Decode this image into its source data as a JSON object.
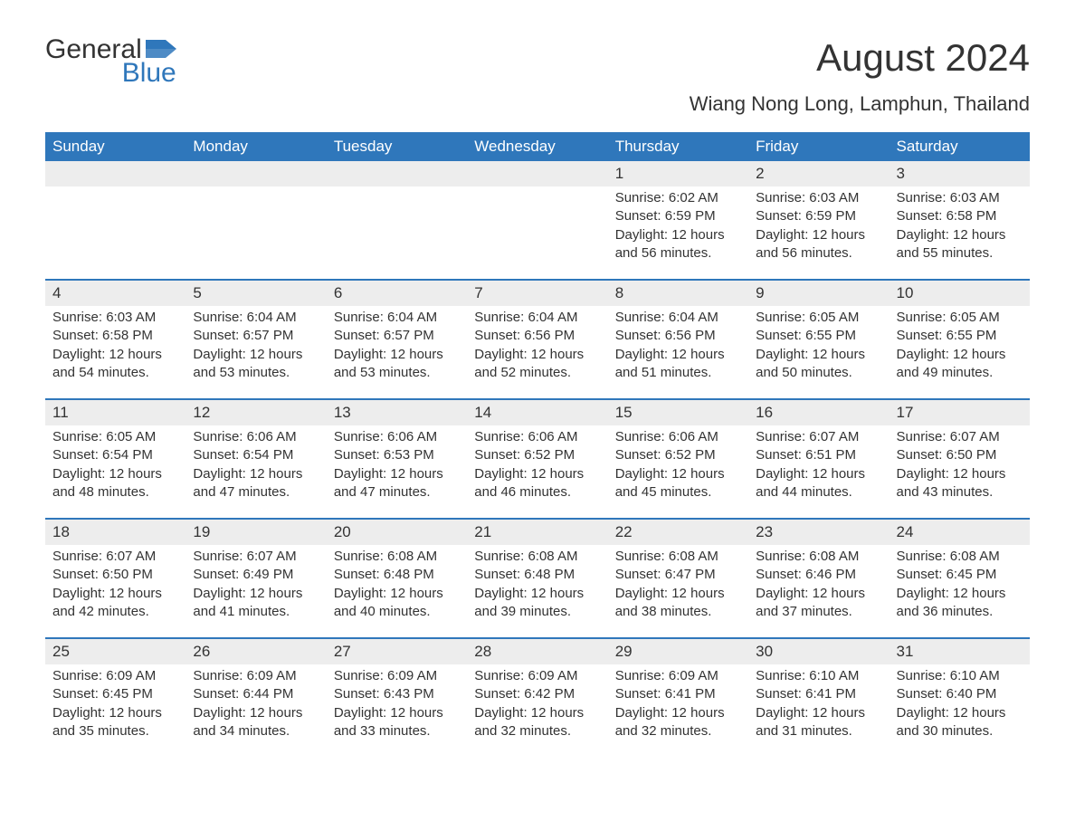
{
  "logo": {
    "text1": "General",
    "text2": "Blue",
    "accent": "#2f77bb"
  },
  "title": "August 2024",
  "subtitle": "Wiang Nong Long, Lamphun, Thailand",
  "colors": {
    "header_bg": "#2f77bb",
    "header_text": "#ffffff",
    "daynum_bg": "#ededed",
    "text": "#333333",
    "rule": "#2f77bb",
    "page_bg": "#ffffff"
  },
  "typography": {
    "title_fontsize": 42,
    "subtitle_fontsize": 22,
    "header_fontsize": 17,
    "daynum_fontsize": 17,
    "body_fontsize": 15
  },
  "weekdays": [
    "Sunday",
    "Monday",
    "Tuesday",
    "Wednesday",
    "Thursday",
    "Friday",
    "Saturday"
  ],
  "weeks": [
    [
      null,
      null,
      null,
      null,
      {
        "n": "1",
        "sunrise": "Sunrise: 6:02 AM",
        "sunset": "Sunset: 6:59 PM",
        "daylight1": "Daylight: 12 hours",
        "daylight2": "and 56 minutes."
      },
      {
        "n": "2",
        "sunrise": "Sunrise: 6:03 AM",
        "sunset": "Sunset: 6:59 PM",
        "daylight1": "Daylight: 12 hours",
        "daylight2": "and 56 minutes."
      },
      {
        "n": "3",
        "sunrise": "Sunrise: 6:03 AM",
        "sunset": "Sunset: 6:58 PM",
        "daylight1": "Daylight: 12 hours",
        "daylight2": "and 55 minutes."
      }
    ],
    [
      {
        "n": "4",
        "sunrise": "Sunrise: 6:03 AM",
        "sunset": "Sunset: 6:58 PM",
        "daylight1": "Daylight: 12 hours",
        "daylight2": "and 54 minutes."
      },
      {
        "n": "5",
        "sunrise": "Sunrise: 6:04 AM",
        "sunset": "Sunset: 6:57 PM",
        "daylight1": "Daylight: 12 hours",
        "daylight2": "and 53 minutes."
      },
      {
        "n": "6",
        "sunrise": "Sunrise: 6:04 AM",
        "sunset": "Sunset: 6:57 PM",
        "daylight1": "Daylight: 12 hours",
        "daylight2": "and 53 minutes."
      },
      {
        "n": "7",
        "sunrise": "Sunrise: 6:04 AM",
        "sunset": "Sunset: 6:56 PM",
        "daylight1": "Daylight: 12 hours",
        "daylight2": "and 52 minutes."
      },
      {
        "n": "8",
        "sunrise": "Sunrise: 6:04 AM",
        "sunset": "Sunset: 6:56 PM",
        "daylight1": "Daylight: 12 hours",
        "daylight2": "and 51 minutes."
      },
      {
        "n": "9",
        "sunrise": "Sunrise: 6:05 AM",
        "sunset": "Sunset: 6:55 PM",
        "daylight1": "Daylight: 12 hours",
        "daylight2": "and 50 minutes."
      },
      {
        "n": "10",
        "sunrise": "Sunrise: 6:05 AM",
        "sunset": "Sunset: 6:55 PM",
        "daylight1": "Daylight: 12 hours",
        "daylight2": "and 49 minutes."
      }
    ],
    [
      {
        "n": "11",
        "sunrise": "Sunrise: 6:05 AM",
        "sunset": "Sunset: 6:54 PM",
        "daylight1": "Daylight: 12 hours",
        "daylight2": "and 48 minutes."
      },
      {
        "n": "12",
        "sunrise": "Sunrise: 6:06 AM",
        "sunset": "Sunset: 6:54 PM",
        "daylight1": "Daylight: 12 hours",
        "daylight2": "and 47 minutes."
      },
      {
        "n": "13",
        "sunrise": "Sunrise: 6:06 AM",
        "sunset": "Sunset: 6:53 PM",
        "daylight1": "Daylight: 12 hours",
        "daylight2": "and 47 minutes."
      },
      {
        "n": "14",
        "sunrise": "Sunrise: 6:06 AM",
        "sunset": "Sunset: 6:52 PM",
        "daylight1": "Daylight: 12 hours",
        "daylight2": "and 46 minutes."
      },
      {
        "n": "15",
        "sunrise": "Sunrise: 6:06 AM",
        "sunset": "Sunset: 6:52 PM",
        "daylight1": "Daylight: 12 hours",
        "daylight2": "and 45 minutes."
      },
      {
        "n": "16",
        "sunrise": "Sunrise: 6:07 AM",
        "sunset": "Sunset: 6:51 PM",
        "daylight1": "Daylight: 12 hours",
        "daylight2": "and 44 minutes."
      },
      {
        "n": "17",
        "sunrise": "Sunrise: 6:07 AM",
        "sunset": "Sunset: 6:50 PM",
        "daylight1": "Daylight: 12 hours",
        "daylight2": "and 43 minutes."
      }
    ],
    [
      {
        "n": "18",
        "sunrise": "Sunrise: 6:07 AM",
        "sunset": "Sunset: 6:50 PM",
        "daylight1": "Daylight: 12 hours",
        "daylight2": "and 42 minutes."
      },
      {
        "n": "19",
        "sunrise": "Sunrise: 6:07 AM",
        "sunset": "Sunset: 6:49 PM",
        "daylight1": "Daylight: 12 hours",
        "daylight2": "and 41 minutes."
      },
      {
        "n": "20",
        "sunrise": "Sunrise: 6:08 AM",
        "sunset": "Sunset: 6:48 PM",
        "daylight1": "Daylight: 12 hours",
        "daylight2": "and 40 minutes."
      },
      {
        "n": "21",
        "sunrise": "Sunrise: 6:08 AM",
        "sunset": "Sunset: 6:48 PM",
        "daylight1": "Daylight: 12 hours",
        "daylight2": "and 39 minutes."
      },
      {
        "n": "22",
        "sunrise": "Sunrise: 6:08 AM",
        "sunset": "Sunset: 6:47 PM",
        "daylight1": "Daylight: 12 hours",
        "daylight2": "and 38 minutes."
      },
      {
        "n": "23",
        "sunrise": "Sunrise: 6:08 AM",
        "sunset": "Sunset: 6:46 PM",
        "daylight1": "Daylight: 12 hours",
        "daylight2": "and 37 minutes."
      },
      {
        "n": "24",
        "sunrise": "Sunrise: 6:08 AM",
        "sunset": "Sunset: 6:45 PM",
        "daylight1": "Daylight: 12 hours",
        "daylight2": "and 36 minutes."
      }
    ],
    [
      {
        "n": "25",
        "sunrise": "Sunrise: 6:09 AM",
        "sunset": "Sunset: 6:45 PM",
        "daylight1": "Daylight: 12 hours",
        "daylight2": "and 35 minutes."
      },
      {
        "n": "26",
        "sunrise": "Sunrise: 6:09 AM",
        "sunset": "Sunset: 6:44 PM",
        "daylight1": "Daylight: 12 hours",
        "daylight2": "and 34 minutes."
      },
      {
        "n": "27",
        "sunrise": "Sunrise: 6:09 AM",
        "sunset": "Sunset: 6:43 PM",
        "daylight1": "Daylight: 12 hours",
        "daylight2": "and 33 minutes."
      },
      {
        "n": "28",
        "sunrise": "Sunrise: 6:09 AM",
        "sunset": "Sunset: 6:42 PM",
        "daylight1": "Daylight: 12 hours",
        "daylight2": "and 32 minutes."
      },
      {
        "n": "29",
        "sunrise": "Sunrise: 6:09 AM",
        "sunset": "Sunset: 6:41 PM",
        "daylight1": "Daylight: 12 hours",
        "daylight2": "and 32 minutes."
      },
      {
        "n": "30",
        "sunrise": "Sunrise: 6:10 AM",
        "sunset": "Sunset: 6:41 PM",
        "daylight1": "Daylight: 12 hours",
        "daylight2": "and 31 minutes."
      },
      {
        "n": "31",
        "sunrise": "Sunrise: 6:10 AM",
        "sunset": "Sunset: 6:40 PM",
        "daylight1": "Daylight: 12 hours",
        "daylight2": "and 30 minutes."
      }
    ]
  ]
}
